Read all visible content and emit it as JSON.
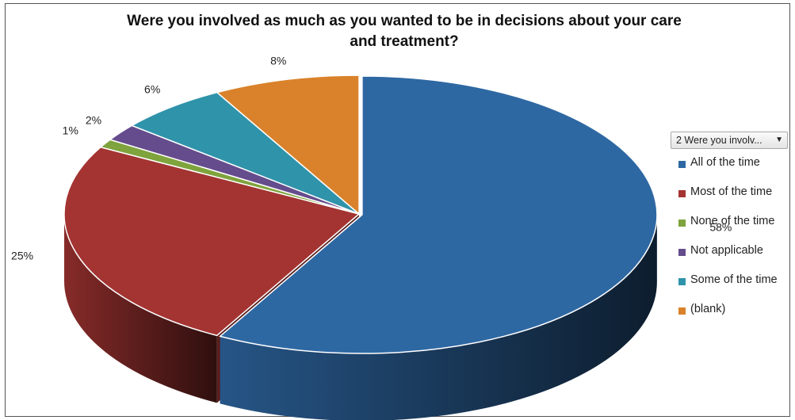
{
  "chart_data": {
    "type": "pie",
    "title": "Were you involved as much as you wanted to be in decisions about your care\nand treatment?",
    "style": "3d-exploded-pie",
    "filter_button_label": "2  Were you involv...",
    "legend_position": "right",
    "slices": [
      {
        "name": "All of the time",
        "value": 58,
        "label": "58%",
        "color": "#2E68A3"
      },
      {
        "name": "Most of the time",
        "value": 25,
        "label": "25%",
        "color": "#A33432"
      },
      {
        "name": "None of the time",
        "value": 1,
        "label": "1%",
        "color": "#7FA33D"
      },
      {
        "name": "Not applicable",
        "value": 2,
        "label": "2%",
        "color": "#654C8C"
      },
      {
        "name": "Some of the time",
        "value": 6,
        "label": "6%",
        "color": "#2F93AA"
      },
      {
        "name": "(blank)",
        "value": 8,
        "label": "8%",
        "color": "#D9822B"
      }
    ]
  }
}
